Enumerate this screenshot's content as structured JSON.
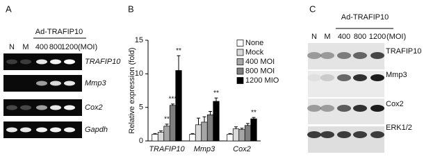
{
  "panels": {
    "A": {
      "label": "A",
      "treatment": "Ad-TRAFIP10",
      "lanes": [
        "N",
        "M",
        "400",
        "800",
        "1200"
      ],
      "unit": "(MOI)",
      "genes": [
        "TRAFIP10",
        "Mmp3",
        "Cox2",
        "Gapdh"
      ]
    },
    "C": {
      "label": "C",
      "treatment": "Ad-TRAFIP10",
      "lanes": [
        "N",
        "M",
        "400",
        "800",
        "1200"
      ],
      "unit": "(MOI)",
      "proteins": [
        "TRAFIP10",
        "Mmp3",
        "Cox2",
        "ERK1/2"
      ]
    }
  },
  "chart_data": {
    "type": "bar",
    "label": "B",
    "y_label": "Relative expression (fold)",
    "categories": [
      "TRAFIP10",
      "Mmp3",
      "Cox2"
    ],
    "series": [
      {
        "name": "None",
        "color": "#ffffff",
        "values": [
          1,
          1,
          1
        ],
        "errors": [
          0.1,
          0.1,
          0.1
        ],
        "annotations": [
          null,
          null,
          null
        ]
      },
      {
        "name": "Mock",
        "color": "#d9d9d9",
        "values": [
          1.3,
          2.4,
          1.8
        ],
        "errors": [
          0.2,
          1.0,
          0.3
        ],
        "annotations": [
          null,
          null,
          null
        ]
      },
      {
        "name": "400 MOI",
        "color": "#a6a6a6",
        "values": [
          2.2,
          2.8,
          1.7
        ],
        "errors": [
          0.3,
          0.8,
          0.2
        ],
        "annotations": [
          "**",
          null,
          null
        ]
      },
      {
        "name": "800 MOI",
        "color": "#7f7f7f",
        "values": [
          5.3,
          3.9,
          2.3
        ],
        "errors": [
          0.2,
          0.5,
          0.3
        ],
        "annotations": [
          "***",
          null,
          null
        ]
      },
      {
        "name": "1200 MIO",
        "color": "#000000",
        "values": [
          10.5,
          5.9,
          3.3
        ],
        "errors": [
          2.2,
          0.5,
          0.2
        ],
        "annotations": [
          "**",
          "**",
          "**"
        ]
      }
    ],
    "ylim": [
      0,
      15
    ],
    "yticks": [
      0,
      5,
      10,
      15
    ]
  }
}
